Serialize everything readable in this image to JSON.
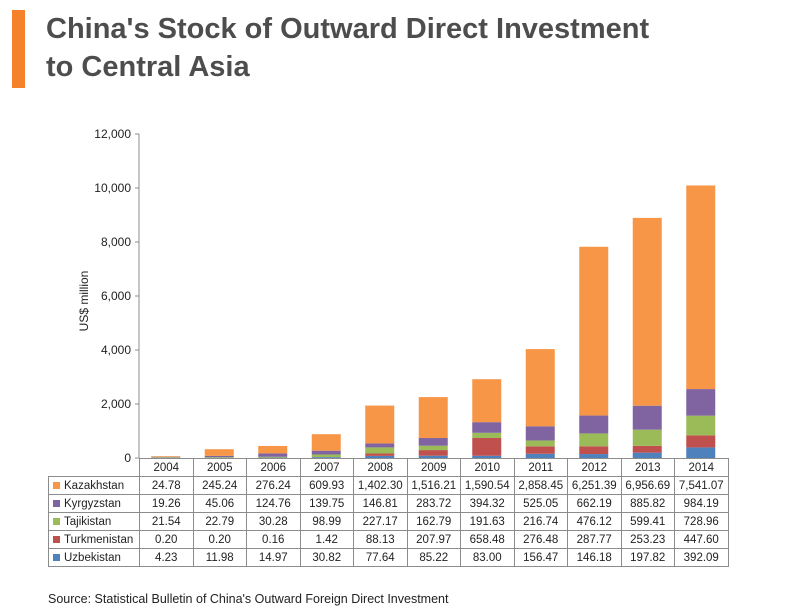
{
  "title_lines": [
    "China's Stock of Outward Direct Investment",
    "to Central Asia"
  ],
  "accent_color": "#f5822a",
  "source": "Source: Statistical  Bulletin  of China's Outward  Foreign Direct Investment",
  "chart_data": {
    "type": "bar",
    "stacked": true,
    "ylabel": "US$ million",
    "ylim": [
      0,
      12000
    ],
    "yticks": [
      "0",
      "2,000",
      "4,000",
      "6,000",
      "8,000",
      "10,000",
      "12,000"
    ],
    "categories": [
      "2004",
      "2005",
      "2006",
      "2007",
      "2008",
      "2009",
      "2010",
      "2011",
      "2012",
      "2013",
      "2014"
    ],
    "series": [
      {
        "name": "Uzbekistan",
        "color": "#4f81bd",
        "values": [
          4.23,
          11.98,
          14.97,
          30.82,
          77.64,
          85.22,
          83.0,
          156.47,
          146.18,
          197.82,
          392.09
        ],
        "labels": [
          "4.23",
          "11.98",
          "14.97",
          "30.82",
          "77.64",
          "85.22",
          "83.00",
          "156.47",
          "146.18",
          "197.82",
          "392.09"
        ]
      },
      {
        "name": "Turkmenistan",
        "color": "#c0504d",
        "values": [
          0.2,
          0.2,
          0.16,
          1.42,
          88.13,
          207.97,
          658.48,
          276.48,
          287.77,
          253.23,
          447.6
        ],
        "labels": [
          "0.20",
          "0.20",
          "0.16",
          "1.42",
          "88.13",
          "207.97",
          "658.48",
          "276.48",
          "287.77",
          "253.23",
          "447.60"
        ]
      },
      {
        "name": "Tajikistan",
        "color": "#9bbb59",
        "values": [
          21.54,
          22.79,
          30.28,
          98.99,
          227.17,
          162.79,
          191.63,
          216.74,
          476.12,
          599.41,
          728.96
        ],
        "labels": [
          "21.54",
          "22.79",
          "30.28",
          "98.99",
          "227.17",
          "162.79",
          "191.63",
          "216.74",
          "476.12",
          "599.41",
          "728.96"
        ]
      },
      {
        "name": "Kyrgyzstan",
        "color": "#8064a2",
        "values": [
          19.26,
          45.06,
          124.76,
          139.75,
          146.81,
          283.72,
          394.32,
          525.05,
          662.19,
          885.82,
          984.19
        ],
        "labels": [
          "19.26",
          "45.06",
          "124.76",
          "139.75",
          "146.81",
          "283.72",
          "394.32",
          "525.05",
          "662.19",
          "885.82",
          "984.19"
        ]
      },
      {
        "name": "Kazakhstan",
        "color": "#f79646",
        "values": [
          24.78,
          245.24,
          276.24,
          609.93,
          1402.3,
          1516.21,
          1590.54,
          2858.45,
          6251.39,
          6956.69,
          7541.07
        ],
        "labels": [
          "24.78",
          "245.24",
          "276.24",
          "609.93",
          "1,402.30",
          "1,516.21",
          "1,590.54",
          "2,858.45",
          "6,251.39",
          "6,956.69",
          "7,541.07"
        ]
      }
    ],
    "table_row_order": [
      "Kazakhstan",
      "Kyrgyzstan",
      "Tajikistan",
      "Turkmenistan",
      "Uzbekistan"
    ]
  }
}
